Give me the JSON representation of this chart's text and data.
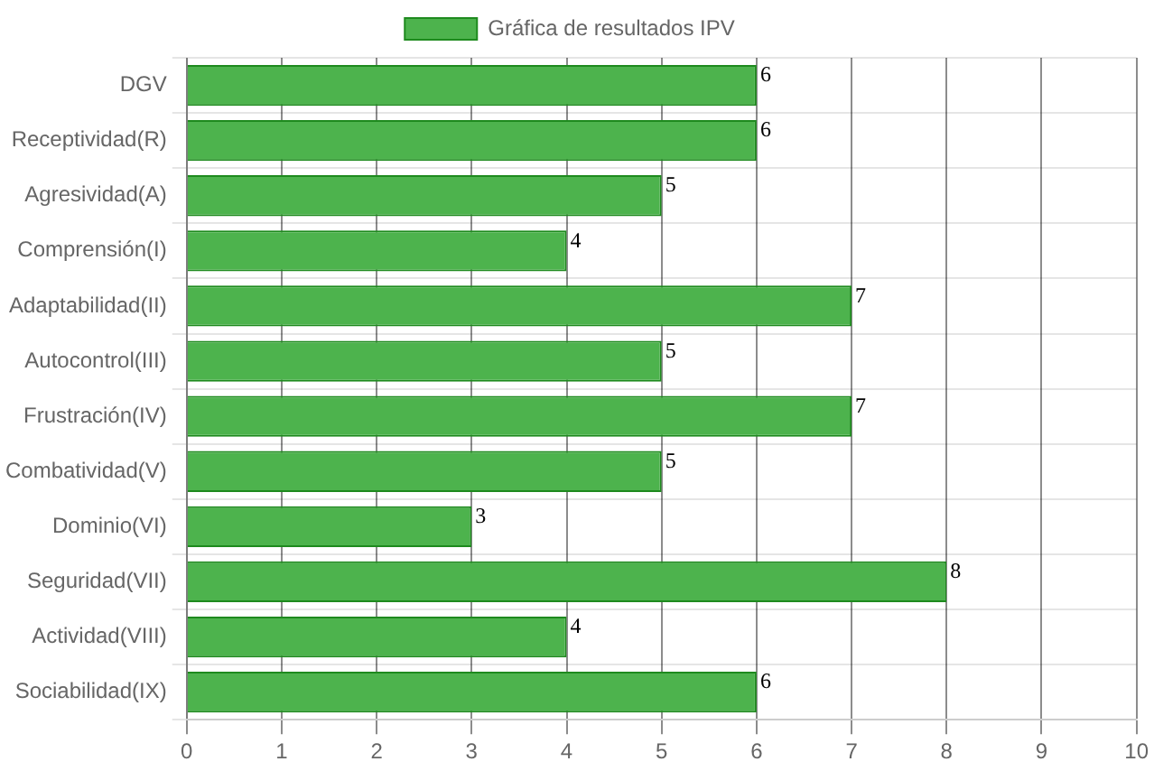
{
  "chart_data": {
    "type": "bar",
    "orientation": "horizontal",
    "categories": [
      "DGV",
      "Receptividad(R)",
      "Agresividad(A)",
      "Comprensión(I)",
      "Adaptabilidad(II)",
      "Autocontrol(III)",
      "Frustración(IV)",
      "Combatividad(V)",
      "Dominio(VI)",
      "Seguridad(VII)",
      "Actividad(VIII)",
      "Sociabilidad(IX)"
    ],
    "series": [
      {
        "name": "Gráfica de resultados IPV",
        "color": "#4db34d",
        "values": [
          6,
          6,
          5,
          4,
          7,
          5,
          7,
          5,
          3,
          8,
          4,
          6
        ]
      }
    ],
    "xlim": [
      0,
      10
    ],
    "xticks": [
      0,
      1,
      2,
      3,
      4,
      5,
      6,
      7,
      8,
      9,
      10
    ],
    "grid": true,
    "legend": "top",
    "data_labels": true
  }
}
